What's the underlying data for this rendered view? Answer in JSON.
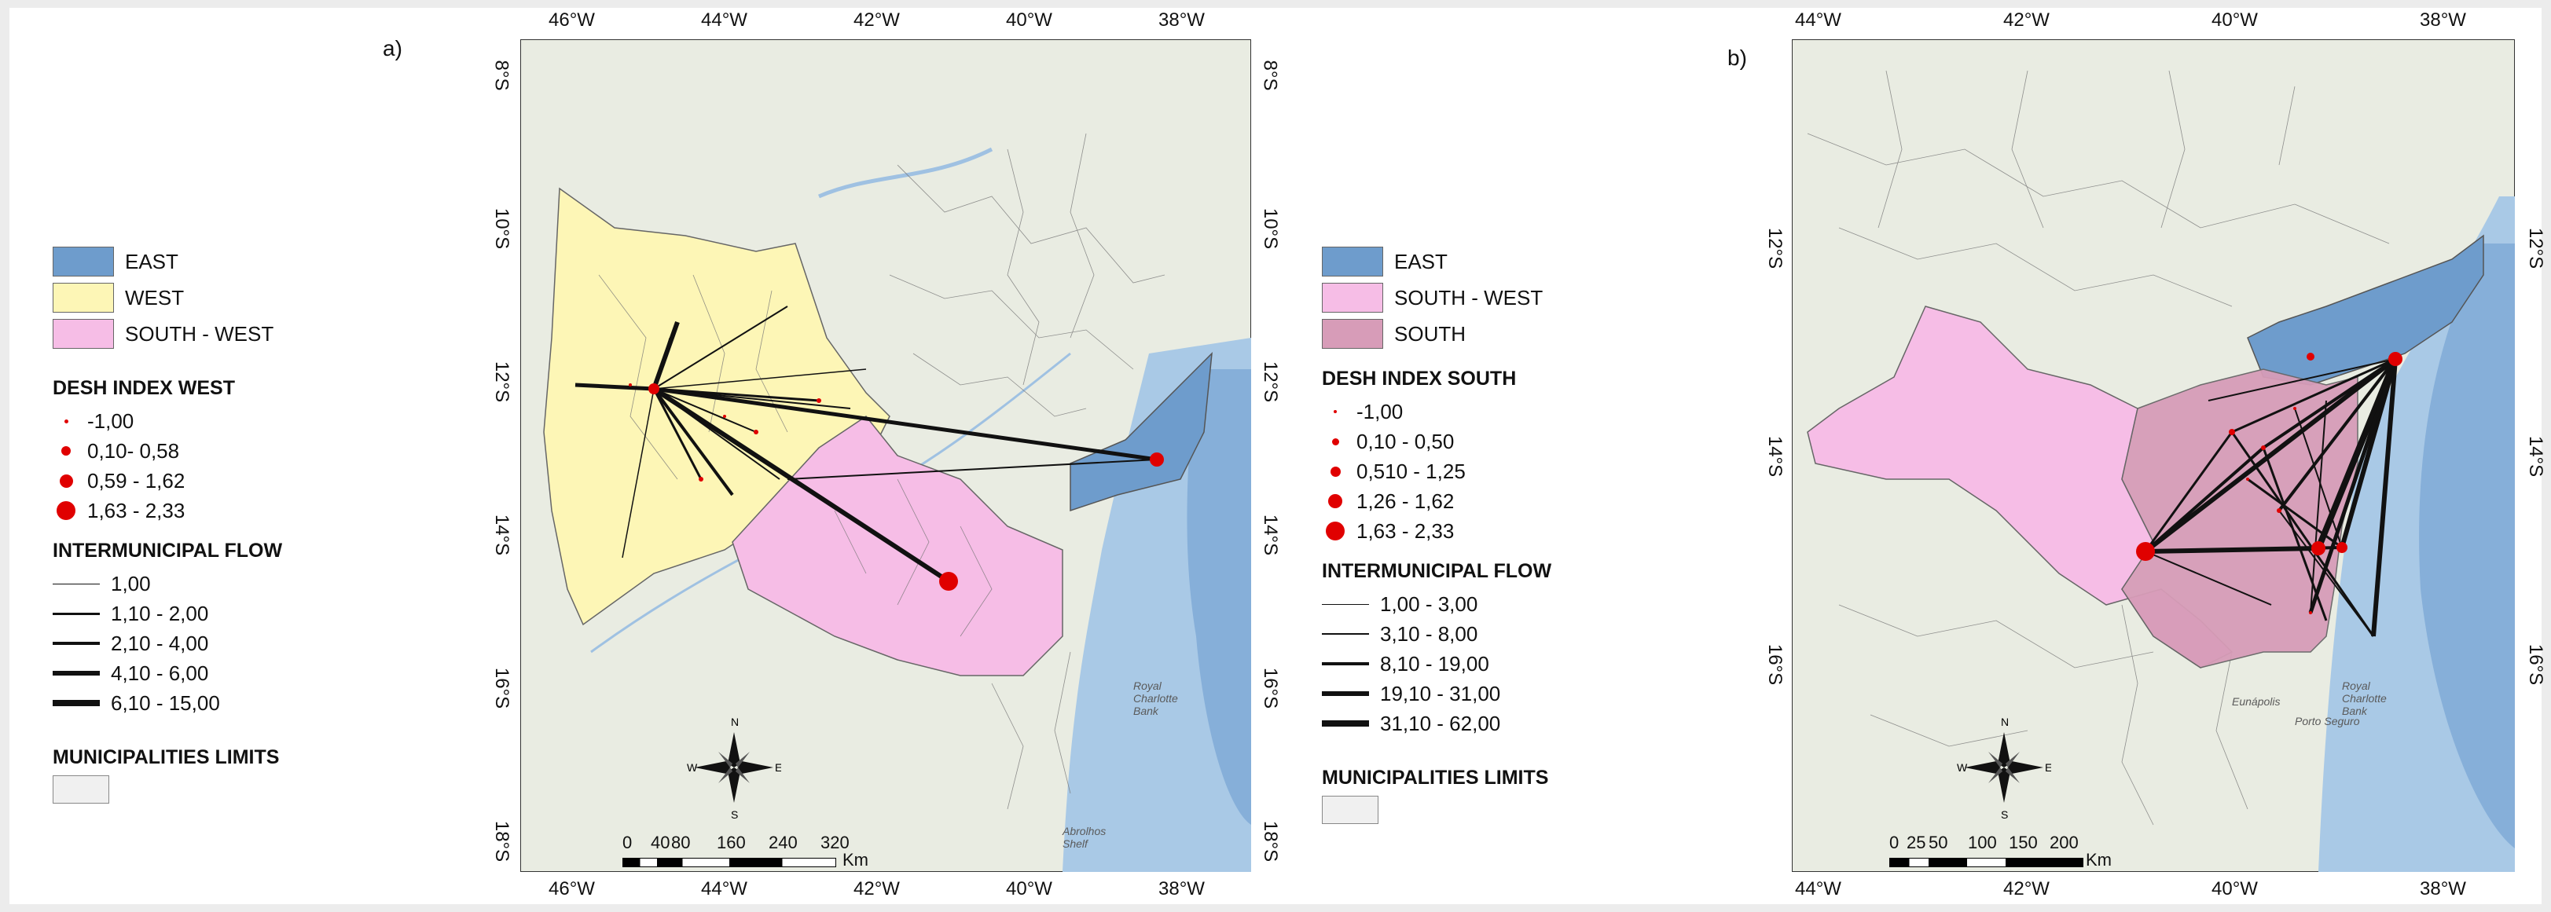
{
  "panels": [
    {
      "label": "a)",
      "regions": [
        {
          "name": "EAST",
          "color": "#6e9ccc"
        },
        {
          "name": "WEST",
          "color": "#fdf6b6"
        },
        {
          "name": "SOUTH - WEST",
          "color": "#f6bde6"
        }
      ],
      "index_title": "DESH INDEX WEST",
      "index_items": [
        "-1,00",
        "0,10- 0,58",
        "0,59 - 1,62",
        "1,63 - 2,33"
      ],
      "flow_title": "INTERMUNICIPAL FLOW",
      "flow_items": [
        "1,00",
        "1,10 - 2,00",
        "2,10 - 4,00",
        "4,10 - 6,00",
        "6,10 - 15,00"
      ],
      "limits_title": "MUNICIPALITIES LIMITS",
      "lon_ticks": [
        "46°W",
        "44°W",
        "42°W",
        "40°W",
        "38°W"
      ],
      "lat_ticks": [
        "8°S",
        "10°S",
        "12°S",
        "14°S",
        "16°S",
        "18°S"
      ],
      "scale_labels": [
        "0",
        "40",
        "80",
        "160",
        "240",
        "320"
      ],
      "scale_unit": "Km",
      "map_labels": [
        "Royal Charlotte Bank",
        "Abrolhos Shelf"
      ]
    },
    {
      "label": "b)",
      "regions": [
        {
          "name": "EAST",
          "color": "#6e9ccc"
        },
        {
          "name": "SOUTH - WEST",
          "color": "#f6bde6"
        },
        {
          "name": "SOUTH",
          "color": "#d79cb8"
        }
      ],
      "index_title": "DESH INDEX SOUTH",
      "index_items": [
        "-1,00",
        "0,10 - 0,50",
        "0,510 - 1,25",
        "1,26 - 1,62",
        "1,63 - 2,33"
      ],
      "flow_title": "INTERMUNICIPAL FLOW",
      "flow_items": [
        "1,00 - 3,00",
        "3,10 - 8,00",
        "8,10 - 19,00",
        "19,10 - 31,00",
        "31,10 - 62,00"
      ],
      "limits_title": "MUNICIPALITIES LIMITS",
      "lon_ticks": [
        "44°W",
        "42°W",
        "40°W",
        "38°W"
      ],
      "lat_ticks": [
        "12°S",
        "14°S",
        "16°S"
      ],
      "scale_labels": [
        "0",
        "25",
        "50",
        "100",
        "150",
        "200"
      ],
      "scale_unit": "Km",
      "map_labels": [
        "Royal Charlotte Bank",
        "Eunápolis",
        "Porto Seguro"
      ]
    }
  ],
  "north_arrow_labels": [
    "N",
    "S",
    "W",
    "E"
  ],
  "colors": {
    "point": "#e00000",
    "flow": "#111111",
    "sea": "#a9c9e6",
    "land": "#e9ece2"
  }
}
